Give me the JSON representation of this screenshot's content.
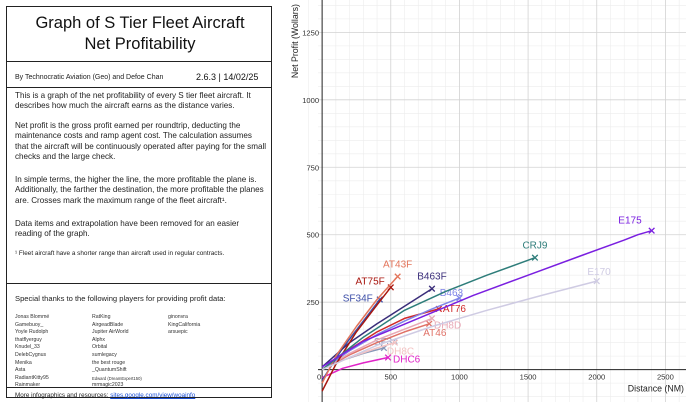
{
  "panel": {
    "title_line1": "Graph of S Tier Fleet Aircraft",
    "title_line2": "Net Profitability",
    "authors": "By Technocratic Aviation (Geo) and Defoe Chan",
    "version": "2.6.3  | 14/02/25",
    "paragraphs": [
      "This is a graph of the net profitability of every S tier fleet aircraft. It describes how much the aircraft earns as the distance varies.",
      "Net profit is the gross profit earned per roundtrip, deducting the maintenance costs and ramp agent cost. The calculation assumes that the aircraft will be continuously operated after paying for the small checks and the large check.",
      "In simple terms, the higher the line, the more profitable the plane is. Additionally, the farther the destination, the more profitable the planes are. Crosses mark the maximum range of the fleet aircraft¹.",
      "Data items and extrapolation have been removed for an easier reading of the graph."
    ],
    "footnote": "¹ Fleet aircraft have a shorter range than aircraft used in regular contracts.",
    "thanks_title": "Special thanks to the following players for providing profit data:",
    "thanks_col1": [
      "Jonas Blommé",
      "Gamebuoy_",
      "Yoyle Rudolph",
      "thatflyerguy",
      "Knudel_33",
      "DelebCygnus",
      "Menika",
      "Asta",
      "RadiantKitty95",
      "Rainmaker"
    ],
    "thanks_col2": [
      "RatKing",
      "AirgeadBlade",
      "Jupiter AirWorld",
      "Alphx",
      "Orbital",
      "sumlegacy",
      "the best rouge",
      "_QuantumShift",
      "Edward (DreamExpert150)",
      "mrmagic2023"
    ],
    "thanks_col3": [
      "ginonvra",
      "KingCalifornia",
      "arsuepic"
    ],
    "footer_text": "More infographics and resources: ",
    "footer_link": "sites.google.com/view/woainfo"
  },
  "chart_data": {
    "type": "line",
    "xlabel": "Distance (NM)",
    "ylabel": "Net Profit (Wollars)",
    "xlim": [
      -30,
      2650
    ],
    "ylim": [
      -120,
      1370
    ],
    "xticks": [
      0,
      500,
      1000,
      1500,
      2000,
      2500
    ],
    "yticks": [
      0,
      250,
      500,
      750,
      1000,
      1250
    ],
    "grid": true,
    "series": [
      {
        "name": "E175",
        "color": "#7a1fe0",
        "x": [
          0,
          300,
          700,
          1100,
          1500,
          1900,
          2200,
          2300,
          2400
        ],
        "y": [
          10,
          105,
          190,
          275,
          350,
          425,
          480,
          500,
          515
        ],
        "max_range": 2400
      },
      {
        "name": "E170",
        "color": "#cfcbe3",
        "x": [
          0,
          400,
          800,
          1200,
          1600,
          2000
        ],
        "y": [
          0,
          90,
          160,
          220,
          275,
          328
        ],
        "max_range": 2000
      },
      {
        "name": "CRJ9",
        "color": "#2e7d7a",
        "x": [
          0,
          300,
          600,
          900,
          1200,
          1550
        ],
        "y": [
          0,
          120,
          220,
          290,
          350,
          415
        ],
        "max_range": 1550
      },
      {
        "name": "AT43F",
        "color": "#e3745a",
        "x": [
          0,
          100,
          250,
          400,
          550
        ],
        "y": [
          -50,
          50,
          160,
          260,
          345
        ],
        "max_range": 550
      },
      {
        "name": "AT75F",
        "color": "#a8160f",
        "x": [
          0,
          100,
          250,
          400,
          500
        ],
        "y": [
          -80,
          20,
          140,
          240,
          305
        ],
        "max_range": 500
      },
      {
        "name": "B463F",
        "color": "#3a2d7a",
        "x": [
          0,
          200,
          400,
          600,
          800
        ],
        "y": [
          10,
          100,
          170,
          235,
          300
        ],
        "max_range": 800
      },
      {
        "name": "SF34F",
        "color": "#3d4fa8",
        "x": [
          0,
          150,
          300,
          420
        ],
        "y": [
          -40,
          80,
          180,
          260
        ],
        "max_range": 420
      },
      {
        "name": "B463",
        "color": "#7f84e8",
        "x": [
          0,
          200,
          400,
          600,
          800,
          1000
        ],
        "y": [
          0,
          70,
          130,
          180,
          225,
          265
        ],
        "max_range": 1000
      },
      {
        "name": "AT76",
        "color": "#d02a2a",
        "x": [
          0,
          200,
          400,
          600,
          850
        ],
        "y": [
          0,
          75,
          140,
          190,
          225
        ],
        "max_range": 850
      },
      {
        "name": "DH8D",
        "color": "#e8a8b6",
        "x": [
          0,
          200,
          400,
          600,
          800
        ],
        "y": [
          0,
          60,
          110,
          150,
          190
        ],
        "max_range": 800
      },
      {
        "name": "AT46",
        "color": "#e07268",
        "x": [
          0,
          200,
          400,
          600,
          780
        ],
        "y": [
          0,
          55,
          100,
          140,
          170
        ],
        "max_range": 780
      },
      {
        "name": "DH8C",
        "color": "#f3c3c3",
        "x": [
          0,
          200,
          400,
          530
        ],
        "y": [
          0,
          45,
          80,
          100
        ],
        "max_range": 530
      },
      {
        "name": "SF34",
        "color": "#8797b8",
        "x": [
          0,
          150,
          300,
          450
        ],
        "y": [
          0,
          35,
          60,
          80
        ],
        "max_range": 450
      },
      {
        "name": "DHC6",
        "color": "#e023c8",
        "x": [
          0,
          150,
          300,
          480
        ],
        "y": [
          -30,
          5,
          25,
          45
        ],
        "max_range": 480
      }
    ]
  }
}
